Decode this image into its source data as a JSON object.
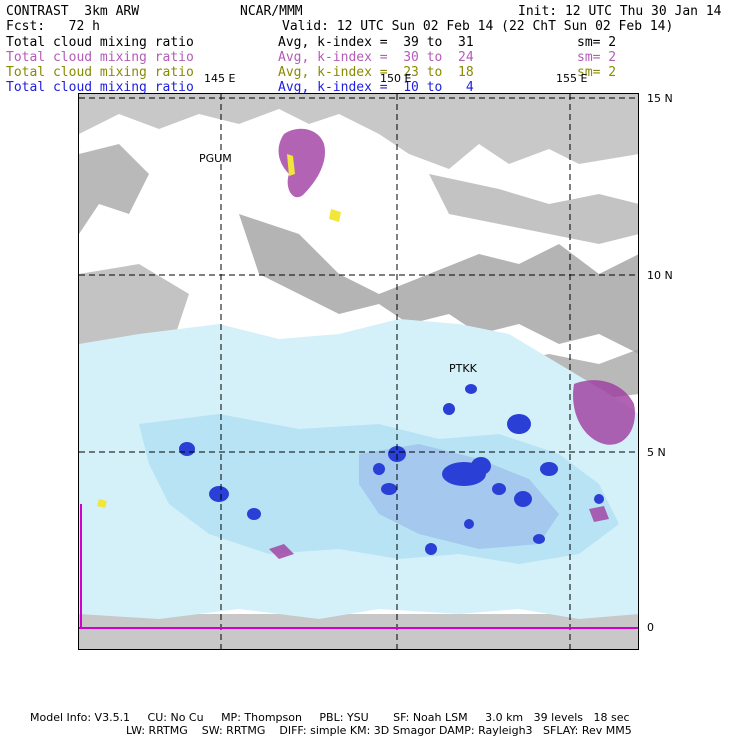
{
  "header": {
    "title": "CONTRAST  3km ARW",
    "org": "NCAR/MMM",
    "init": "Init: 12 UTC Thu 30 Jan 14",
    "fcst": "Fcst:   72 h",
    "valid": "Valid: 12 UTC Sun 02 Feb 14 (22 ChT Sun 02 Feb 14)"
  },
  "fields": [
    {
      "name": "Total cloud mixing ratio",
      "avg": "Avg, k-index =  39 to  31",
      "sm": "sm= 2",
      "color": "#000000"
    },
    {
      "name": "Total cloud mixing ratio",
      "avg": "Avg, k-index =  30 to  24",
      "sm": "sm= 2",
      "color": "#b35cb8"
    },
    {
      "name": "Total cloud mixing ratio",
      "avg": "Avg, k-index =  23 to  18",
      "sm": "sm= 2",
      "color": "#8a8a00"
    },
    {
      "name": "Total cloud mixing ratio",
      "avg": "Avg, k-index =  10 to   4",
      "sm": "",
      "color": "#2020e0"
    }
  ],
  "map": {
    "lon_labels": [
      "145 E",
      "150 E",
      "155 E"
    ],
    "lat_labels": [
      "15 N",
      "10 N",
      "5 N",
      "0"
    ],
    "stations": [
      "PGUM",
      "PTKK"
    ]
  },
  "footer": {
    "line1": "Model Info: V3.5.1     CU: No Cu     MP: Thompson     PBL: YSU       SF: Noah LSM     3.0 km   39 levels   18 sec",
    "line2": "LW: RRTMG    SW: RRTMG    DIFF: simple KM: 3D Smagor DAMP: Rayleigh3   SFLAY: Rev MM5"
  }
}
